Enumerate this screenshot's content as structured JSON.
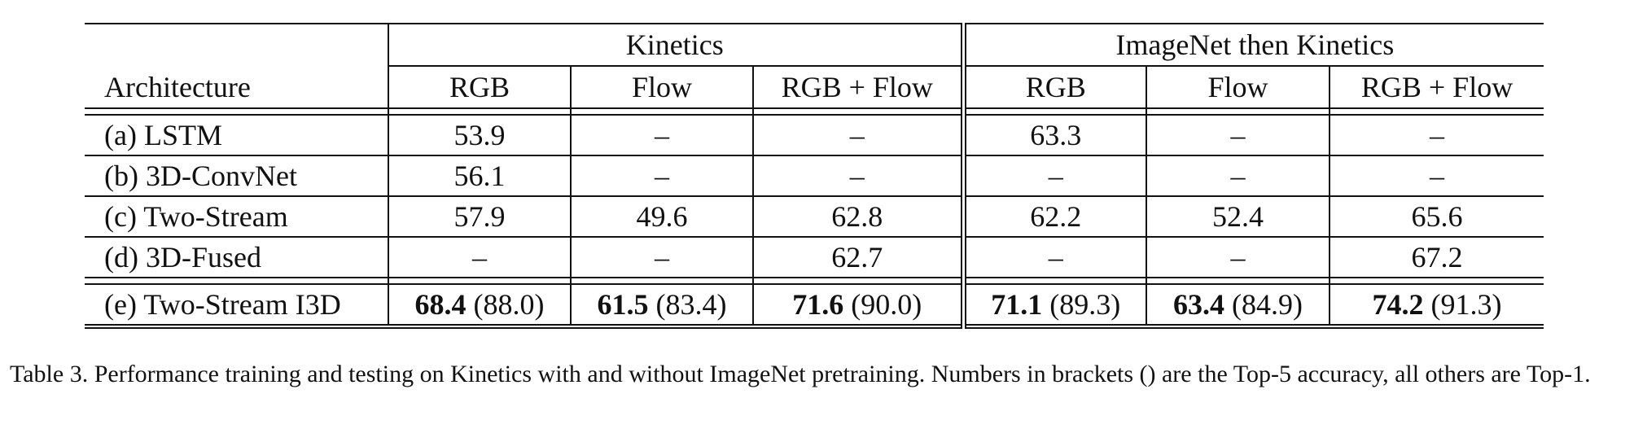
{
  "table": {
    "groups": [
      "Kinetics",
      "ImageNet then Kinetics"
    ],
    "arch_header": "Architecture",
    "subheaders": [
      "RGB",
      "Flow",
      "RGB + Flow",
      "RGB",
      "Flow",
      "RGB + Flow"
    ],
    "rows": [
      {
        "name": "(a) LSTM",
        "cells": [
          "53.9",
          "–",
          "–",
          "63.3",
          "–",
          "–"
        ]
      },
      {
        "name": "(b) 3D-ConvNet",
        "cells": [
          "56.1",
          "–",
          "–",
          "–",
          "–",
          "–"
        ]
      },
      {
        "name": "(c) Two-Stream",
        "cells": [
          "57.9",
          "49.6",
          "62.8",
          "62.2",
          "52.4",
          "65.6"
        ]
      },
      {
        "name": "(d) 3D-Fused",
        "cells": [
          "–",
          "–",
          "62.7",
          "–",
          "–",
          "67.2"
        ]
      }
    ],
    "final_row": {
      "name": "(e) Two-Stream I3D",
      "cells": [
        {
          "top1": "68.4",
          "top5": "(88.0)"
        },
        {
          "top1": "61.5",
          "top5": "(83.4)"
        },
        {
          "top1": "71.6",
          "top5": "(90.0)"
        },
        {
          "top1": "71.1",
          "top5": "(89.3)"
        },
        {
          "top1": "63.4",
          "top5": "(84.9)"
        },
        {
          "top1": "74.2",
          "top5": "(91.3)"
        }
      ]
    }
  },
  "caption": "Table 3. Performance training and testing on Kinetics with and without ImageNet pretraining.  Numbers in brackets () are the Top-5 accuracy, all others are Top-1."
}
